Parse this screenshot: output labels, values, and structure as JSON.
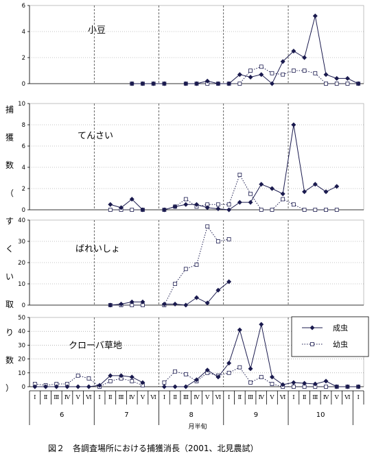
{
  "chart_data": {
    "type": "line",
    "ylabel": [
      "捕",
      "獲",
      "数",
      "（",
      "す",
      "く",
      "い",
      "取",
      "り",
      "数",
      "）"
    ],
    "xlabel": "月半旬",
    "caption": "図２　各調査場所における捕獲消長（2001、北見農試）",
    "legend": {
      "placement": "inside-right",
      "adult": "成虫",
      "larva": "幼虫"
    },
    "months": [
      "6",
      "7",
      "8",
      "9",
      "10"
    ],
    "periods": [
      "Ⅰ",
      "Ⅱ",
      "Ⅲ",
      "Ⅳ",
      "Ⅴ",
      "Ⅵ"
    ],
    "colors": {
      "line": "#1a1a4e",
      "axis": "#000000"
    },
    "grid": true,
    "panels": [
      {
        "title": "小豆",
        "ylim": [
          0,
          6
        ],
        "yticks": [
          0,
          2,
          4,
          6
        ],
        "adult": [
          [
            9,
            0
          ],
          [
            10,
            0
          ],
          [
            11,
            0
          ],
          [
            12,
            0
          ],
          [
            14,
            0
          ],
          [
            15,
            0
          ],
          [
            16,
            0.2
          ],
          [
            17,
            0
          ],
          [
            18,
            0
          ],
          [
            19,
            0.7
          ],
          [
            20,
            0.5
          ],
          [
            21,
            0.7
          ],
          [
            22,
            0
          ],
          [
            23,
            1.7
          ],
          [
            24,
            2.5
          ],
          [
            25,
            2
          ],
          [
            26,
            5.2
          ],
          [
            27,
            0.7
          ],
          [
            28,
            0.4
          ],
          [
            29,
            0.4
          ],
          [
            30,
            0
          ]
        ],
        "larva": [
          [
            9,
            0
          ],
          [
            10,
            0
          ],
          [
            11,
            0
          ],
          [
            12,
            0
          ],
          [
            14,
            0
          ],
          [
            15,
            0
          ],
          [
            16,
            0
          ],
          [
            17,
            0
          ],
          [
            18,
            0
          ],
          [
            19,
            0
          ],
          [
            20,
            1
          ],
          [
            21,
            1.3
          ],
          [
            22,
            0.8
          ],
          [
            23,
            0.7
          ],
          [
            24,
            1
          ],
          [
            25,
            1
          ],
          [
            26,
            0.8
          ],
          [
            27,
            0
          ],
          [
            28,
            0
          ],
          [
            29,
            0
          ],
          [
            30,
            0
          ]
        ]
      },
      {
        "title": "てんさい",
        "ylim": [
          0,
          10
        ],
        "yticks": [
          0,
          2,
          4,
          6,
          8,
          10
        ],
        "adult": [
          [
            7,
            0.5
          ],
          [
            8,
            0.2
          ],
          [
            9,
            1
          ],
          [
            10,
            0
          ],
          [
            12,
            0
          ],
          [
            13,
            0.3
          ],
          [
            14,
            0.5
          ],
          [
            15,
            0.5
          ],
          [
            16,
            0.2
          ],
          [
            17,
            0.1
          ],
          [
            18,
            0
          ],
          [
            19,
            0.7
          ],
          [
            20,
            0.7
          ],
          [
            21,
            2.4
          ],
          [
            22,
            2
          ],
          [
            23,
            1.5
          ],
          [
            24,
            8
          ],
          [
            25,
            1.7
          ],
          [
            26,
            2.4
          ],
          [
            27,
            1.7
          ],
          [
            28,
            2.2
          ]
        ],
        "larva": [
          [
            7,
            0
          ],
          [
            8,
            0
          ],
          [
            9,
            0
          ],
          [
            10,
            0
          ],
          [
            12,
            0
          ],
          [
            13,
            0.3
          ],
          [
            14,
            1
          ],
          [
            15,
            0.3
          ],
          [
            16,
            0.5
          ],
          [
            17,
            0.5
          ],
          [
            18,
            0.5
          ],
          [
            19,
            3.3
          ],
          [
            20,
            1.5
          ],
          [
            21,
            0
          ],
          [
            22,
            0
          ],
          [
            23,
            1
          ],
          [
            24,
            0.5
          ],
          [
            25,
            0
          ],
          [
            26,
            0
          ],
          [
            27,
            0
          ],
          [
            28,
            0
          ]
        ]
      },
      {
        "title": "ばれいしょ",
        "ylim": [
          0,
          40
        ],
        "yticks": [
          0,
          10,
          20,
          30,
          40
        ],
        "adult": [
          [
            7,
            0
          ],
          [
            8,
            0.5
          ],
          [
            9,
            1.5
          ],
          [
            10,
            1.5
          ],
          [
            12,
            0.5
          ],
          [
            13,
            0.5
          ],
          [
            14,
            0
          ],
          [
            15,
            3.5
          ],
          [
            16,
            1
          ],
          [
            17,
            7
          ],
          [
            18,
            11
          ]
        ],
        "larva": [
          [
            7,
            0
          ],
          [
            8,
            0
          ],
          [
            9,
            0
          ],
          [
            10,
            0
          ],
          [
            12,
            0
          ],
          [
            13,
            10
          ],
          [
            14,
            17
          ],
          [
            15,
            19
          ],
          [
            16,
            37
          ],
          [
            17,
            30
          ],
          [
            18,
            31
          ]
        ]
      },
      {
        "title": "クローバ草地",
        "ylim": [
          0,
          50
        ],
        "yticks": [
          0,
          10,
          20,
          30,
          40,
          50
        ],
        "adult": [
          [
            0,
            0
          ],
          [
            1,
            0
          ],
          [
            2,
            0
          ],
          [
            3,
            0
          ],
          [
            4,
            0
          ],
          [
            5,
            0
          ],
          [
            6,
            1
          ],
          [
            7,
            8
          ],
          [
            8,
            8
          ],
          [
            9,
            7
          ],
          [
            10,
            3
          ],
          [
            12,
            0
          ],
          [
            13,
            0
          ],
          [
            14,
            0
          ],
          [
            15,
            5
          ],
          [
            16,
            12
          ],
          [
            17,
            7
          ],
          [
            18,
            17
          ],
          [
            19,
            41
          ],
          [
            20,
            13
          ],
          [
            21,
            45
          ],
          [
            22,
            7
          ],
          [
            23,
            1.5
          ],
          [
            24,
            3
          ],
          [
            25,
            2.5
          ],
          [
            26,
            2
          ],
          [
            27,
            4
          ],
          [
            28,
            0
          ],
          [
            29,
            0
          ],
          [
            30,
            0
          ]
        ],
        "larva": [
          [
            0,
            2
          ],
          [
            1,
            1
          ],
          [
            2,
            2
          ],
          [
            3,
            2
          ],
          [
            4,
            8
          ],
          [
            5,
            6
          ],
          [
            6,
            0
          ],
          [
            7,
            4
          ],
          [
            8,
            6
          ],
          [
            9,
            4
          ],
          [
            10,
            1
          ],
          [
            12,
            3
          ],
          [
            13,
            11
          ],
          [
            14,
            9
          ],
          [
            15,
            4
          ],
          [
            16,
            10
          ],
          [
            17,
            8
          ],
          [
            18,
            10
          ],
          [
            19,
            14
          ],
          [
            20,
            3
          ],
          [
            21,
            7
          ],
          [
            22,
            2
          ],
          [
            23,
            0
          ],
          [
            24,
            0
          ],
          [
            25,
            0
          ],
          [
            26,
            0
          ],
          [
            27,
            0
          ],
          [
            28,
            0
          ],
          [
            29,
            0
          ],
          [
            30,
            0
          ]
        ]
      }
    ]
  }
}
